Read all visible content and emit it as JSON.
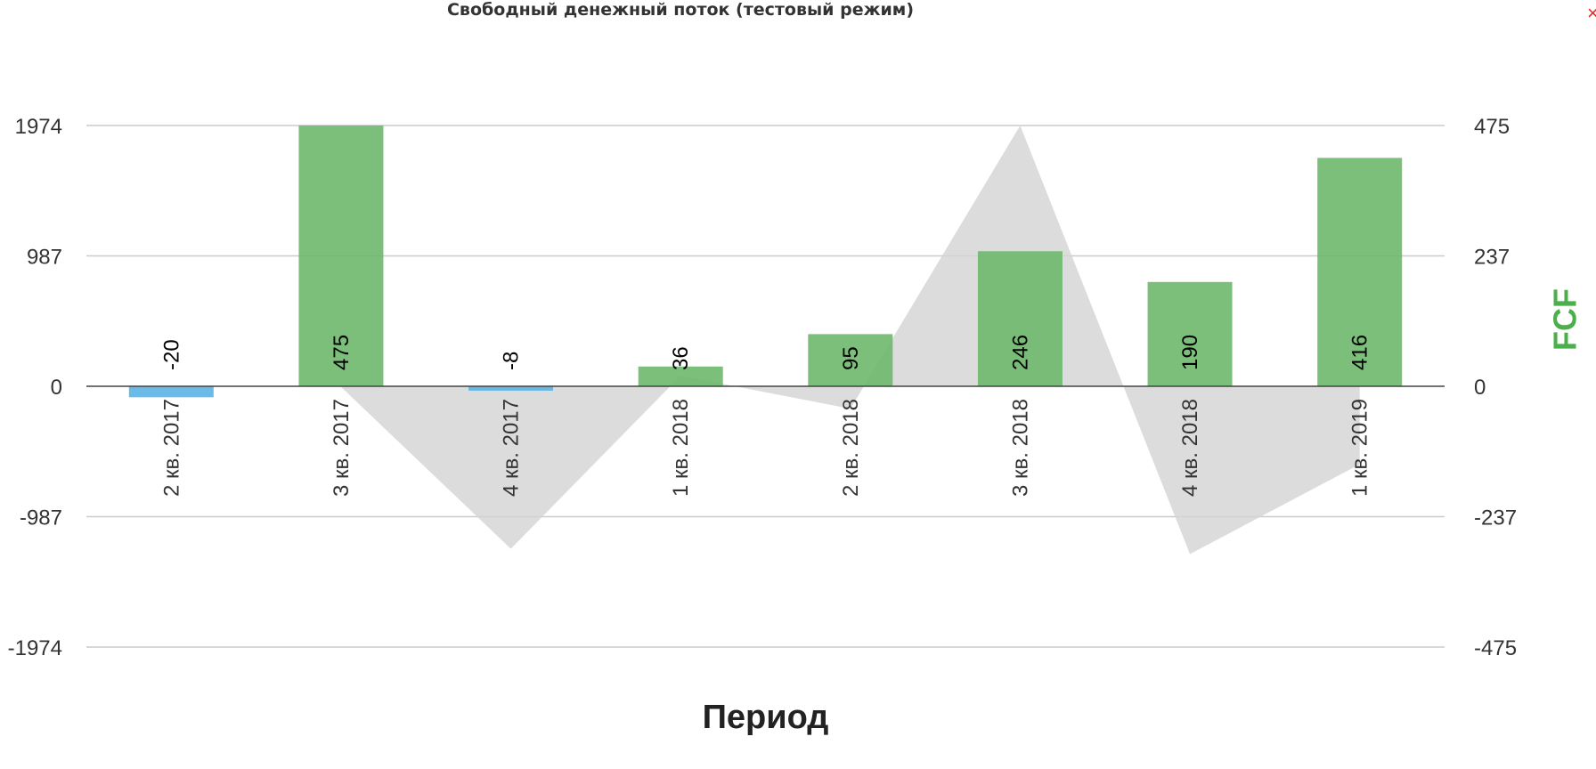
{
  "chart_data": {
    "type": "bar",
    "title": "Свободный денежный поток (тестовый режим)",
    "xlabel": "Период",
    "ylabel": "",
    "y2label": "FCF",
    "categories": [
      "2 кв. 2017",
      "3 кв. 2017",
      "4 кв. 2017",
      "1 кв. 2018",
      "2 кв. 2018",
      "3 кв. 2018",
      "4 кв. 2018",
      "1 кв. 2019"
    ],
    "ylim": [
      -1974,
      1974
    ],
    "y_ticks": [
      1974,
      987,
      0,
      -987,
      -1974
    ],
    "y2lim": [
      -475,
      475
    ],
    "y2_ticks": [
      475,
      237,
      0,
      -237,
      -475
    ],
    "series": [
      {
        "type": "bar",
        "axis": "right",
        "values": [
          -20,
          475,
          -8,
          36,
          95,
          246,
          190,
          416
        ],
        "value_labels": [
          "-20",
          "475",
          "-8",
          "36",
          "95",
          "246",
          "190",
          "416"
        ]
      },
      {
        "type": "area",
        "axis": "left",
        "values": [
          0,
          -5,
          -1230,
          80,
          -170,
          1974,
          -1270,
          -590
        ]
      }
    ],
    "colors": {
      "positive": "#6db86c",
      "negative": "#5ab4e5",
      "area": "#d3d3d3",
      "y2_title": "#4bb04b",
      "grid": "#cccccc",
      "zero": "#444444"
    },
    "grid": true,
    "legend": "none"
  },
  "close_icon": "close-icon",
  "close_glyph": "×"
}
